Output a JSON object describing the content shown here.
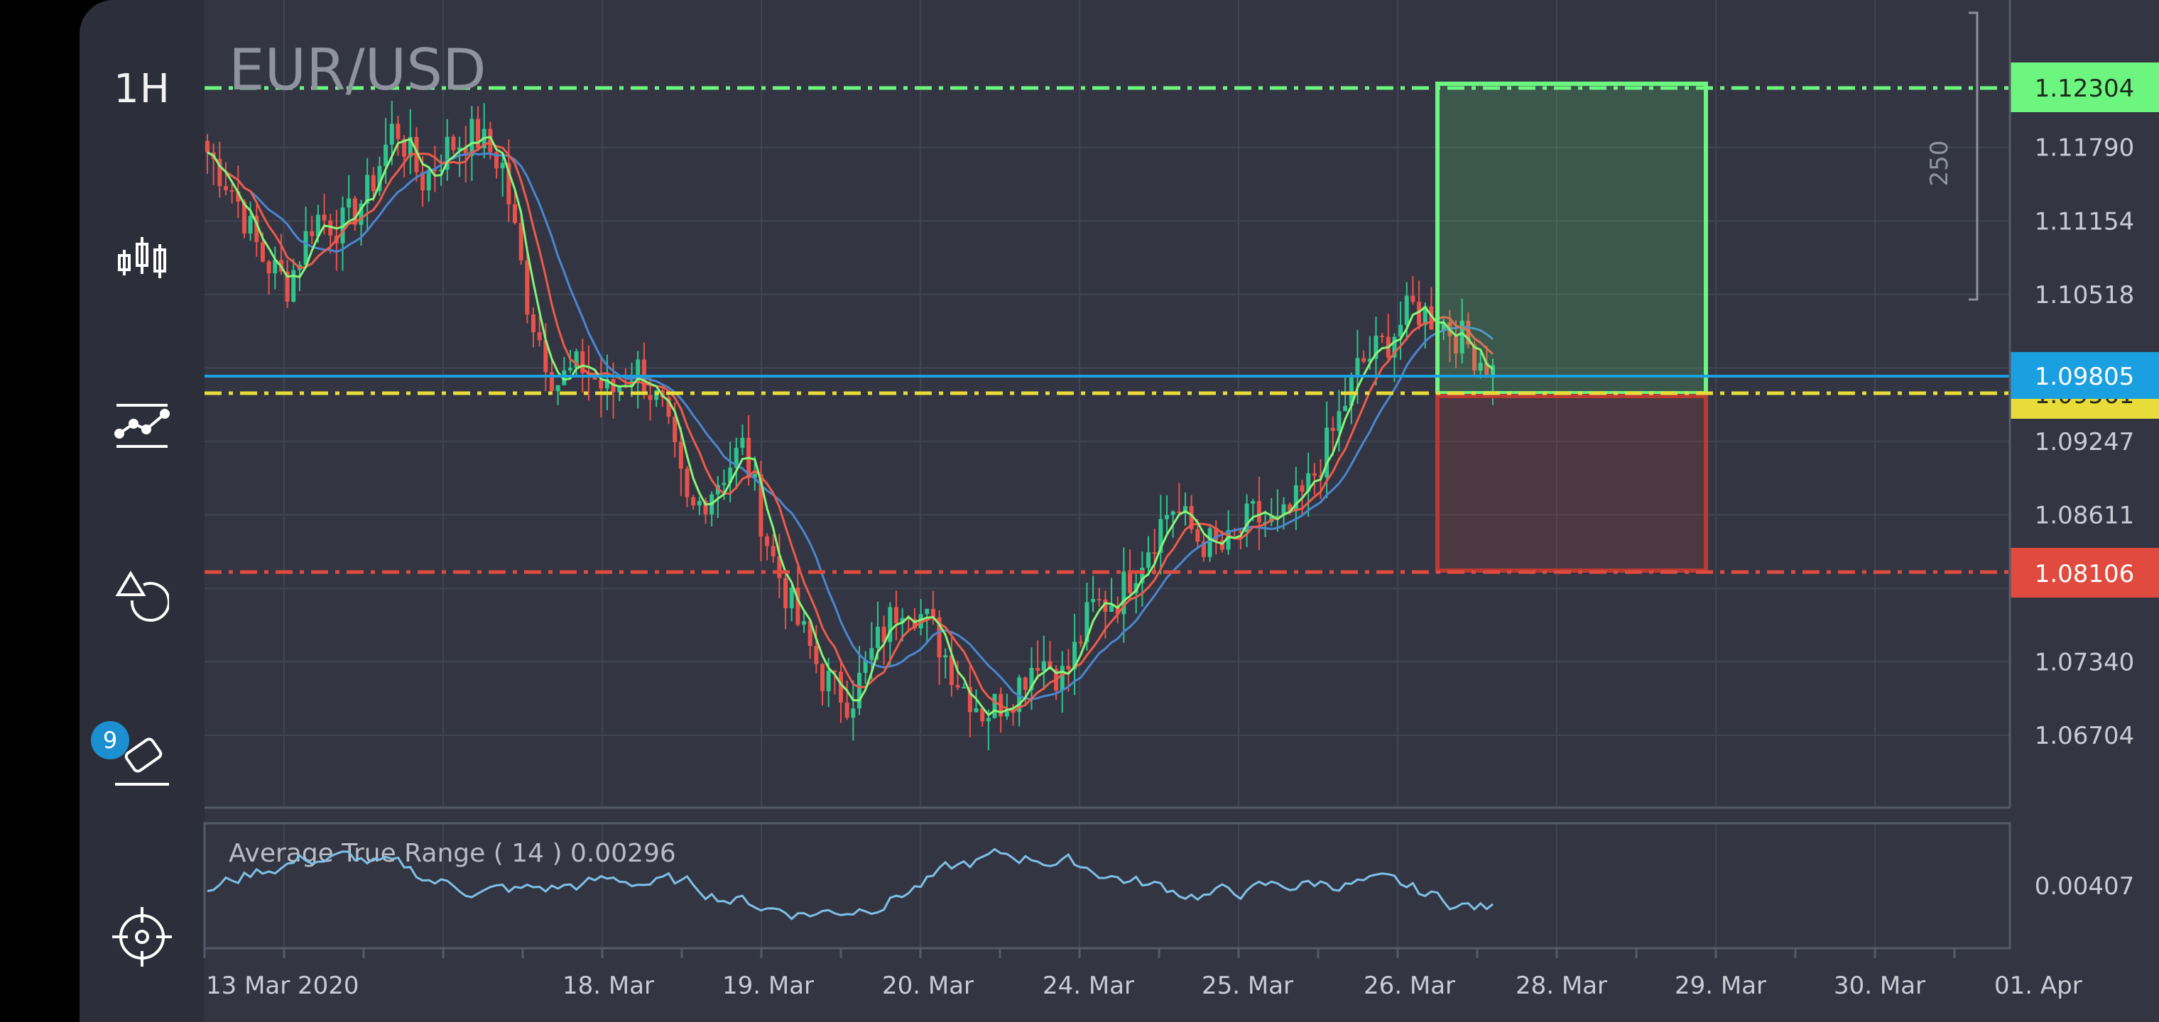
{
  "symbol": "EUR/USD",
  "toolbar": {
    "timeframe": "1H",
    "tools": [
      {
        "id": "chart-type",
        "icon": "candlestick-icon"
      },
      {
        "id": "indicators",
        "icon": "indicator-line-icon"
      },
      {
        "id": "drawing",
        "icon": "shapes-icon"
      },
      {
        "id": "eraser",
        "icon": "eraser-icon",
        "badge": "9"
      },
      {
        "id": "crosshair",
        "icon": "crosshair-icon"
      }
    ]
  },
  "price_axis": {
    "labels": [
      "1.11790",
      "1.11154",
      "1.10518",
      "1.09247",
      "1.08611",
      "1.07340",
      "1.06704"
    ],
    "take_profit": {
      "value": "1.12304",
      "color": "#6cf57f"
    },
    "current": {
      "value": "1.09805",
      "color": "#1a9fe0"
    },
    "entry": {
      "value": "1.09561",
      "color": "#e8dc3a"
    },
    "stop_loss": {
      "value": "1.08106",
      "color": "#e04a3f"
    }
  },
  "ruler_label": "250",
  "atr": {
    "title": "Average True Range ( 14 ) 0.00296",
    "axis_label": "0.00407"
  },
  "time_axis": [
    "13 Mar 2020",
    "18. Mar",
    "19. Mar",
    "20. Mar",
    "24. Mar",
    "25. Mar",
    "26. Mar",
    "28. Mar",
    "29. Mar",
    "30. Mar",
    "01. Apr"
  ],
  "colors": {
    "background": "#333642",
    "toolbar": "#2c2f3a",
    "bull_candle": "#2fc48d",
    "bear_candle": "#e9524a",
    "ma_fast": "#86f576",
    "ma_mid": "#ef5a4a",
    "ma_slow": "#4a86d0",
    "atr_line": "#7fc0e6"
  },
  "chart_data": {
    "type": "candlestick",
    "ohlc_close_path": [
      1.1175,
      1.114,
      1.1085,
      1.106,
      1.112,
      1.111,
      1.114,
      1.12,
      1.115,
      1.118,
      1.119,
      1.1165,
      1.104,
      1.0975,
      1.099,
      1.0965,
      1.099,
      1.095,
      1.086,
      1.089,
      1.092,
      1.083,
      1.077,
      1.072,
      1.07,
      1.075,
      1.079,
      1.0765,
      1.072,
      1.069,
      1.0705,
      1.074,
      1.072,
      1.078,
      1.079,
      1.083,
      1.087,
      1.084,
      1.083,
      1.086,
      1.085,
      1.088,
      1.093,
      1.099,
      1.101,
      1.104,
      1.103,
      1.101,
      1.0985
    ],
    "levels": {
      "take_profit": 1.12304,
      "current": 1.09805,
      "entry": 1.09561,
      "stop_loss": 1.08106
    },
    "atr_period": 14,
    "atr_last": 0.00296
  }
}
